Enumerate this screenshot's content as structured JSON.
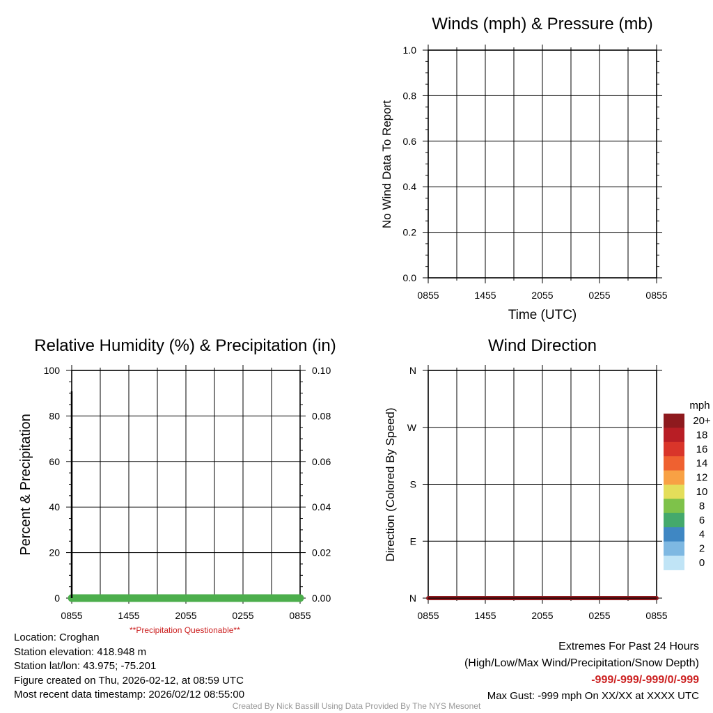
{
  "winds_chart": {
    "title": "Winds (mph) & Pressure (mb)",
    "ylabel": "No Wind Data To Report",
    "xlabel": "Time (UTC)"
  },
  "rh_chart": {
    "title": "Relative Humidity (%) & Precipitation (in)",
    "ylabel": "Percent & Precipitation",
    "note": "**Precipitation Questionable**"
  },
  "dir_chart": {
    "title": "Wind Direction",
    "ylabel": "Direction (Colored By Speed)"
  },
  "colorbar": {
    "units": "mph",
    "labels": [
      "20+",
      "18",
      "16",
      "14",
      "12",
      "10",
      "8",
      "6",
      "4",
      "2",
      "0"
    ],
    "colors": [
      "#8e1a1e",
      "#b81e25",
      "#d9352a",
      "#ef6130",
      "#f8a144",
      "#e4de5a",
      "#7ec24a",
      "#44a96c",
      "#3f87c3",
      "#7eb8e2",
      "#c0e4f6"
    ]
  },
  "station": {
    "location": "Location: Croghan",
    "elevation": "Station elevation: 418.948 m",
    "latlon": "Station lat/lon: 43.975; -75.201",
    "created": "Figure created on Thu, 2026-02-12, at 08:59 UTC",
    "recent": "Most recent data timestamp: 2026/02/12 08:55:00"
  },
  "extremes": {
    "title": "Extremes For Past 24 Hours",
    "subtitle": "(High/Low/Max Wind/Precipitation/Snow Depth)",
    "values": "-999/-999/-999/0/-999",
    "max_gust": "Max Gust: -999 mph On XX/XX at XXXX UTC"
  },
  "credit": "Created By Nick Bassill Using Data Provided By The NYS Mesonet",
  "colors": {
    "rh_line": "#4cae4c",
    "dir_line": "#8e1a1e",
    "warning": "#cc2222"
  },
  "chart_data": [
    {
      "type": "line",
      "title": "Winds (mph) & Pressure (mb)",
      "xlabel": "Time (UTC)",
      "ylabel": "No Wind Data To Report",
      "x_ticks": [
        "0855",
        "1455",
        "2055",
        "0255",
        "0855"
      ],
      "x": [
        0,
        24
      ],
      "xlim": [
        0,
        24
      ],
      "y_ticks": [
        "0.0",
        "0.2",
        "0.4",
        "0.6",
        "0.8",
        "1.0"
      ],
      "ylim": [
        0,
        1
      ],
      "series": [],
      "grid": true
    },
    {
      "type": "line",
      "title": "Relative Humidity (%) & Precipitation (in)",
      "xlabel": "",
      "ylabel": "Percent & Precipitation",
      "x_ticks": [
        "0855",
        "1455",
        "2055",
        "0255",
        "0855"
      ],
      "xlim": [
        0,
        24
      ],
      "y_ticks": [
        "0",
        "20",
        "40",
        "60",
        "80",
        "100"
      ],
      "ylim": [
        0,
        100
      ],
      "y2_ticks": [
        "0.00",
        "0.02",
        "0.04",
        "0.06",
        "0.08",
        "0.10"
      ],
      "y2lim": [
        0,
        0.1
      ],
      "series": [
        {
          "name": "Precipitation",
          "x": [
            0,
            24
          ],
          "values": [
            0,
            0
          ]
        }
      ],
      "grid": true
    },
    {
      "type": "scatter",
      "title": "Wind Direction",
      "xlabel": "",
      "ylabel": "Direction (Colored By Speed)",
      "x_ticks": [
        "0855",
        "1455",
        "2055",
        "0255",
        "0855"
      ],
      "xlim": [
        0,
        24
      ],
      "y_ticks": [
        "N",
        "E",
        "S",
        "W",
        "N"
      ],
      "ylim": [
        0,
        360
      ],
      "series": [
        {
          "name": "Direction",
          "x": [
            0,
            24
          ],
          "values": [
            0,
            0
          ]
        }
      ],
      "grid": true
    }
  ]
}
